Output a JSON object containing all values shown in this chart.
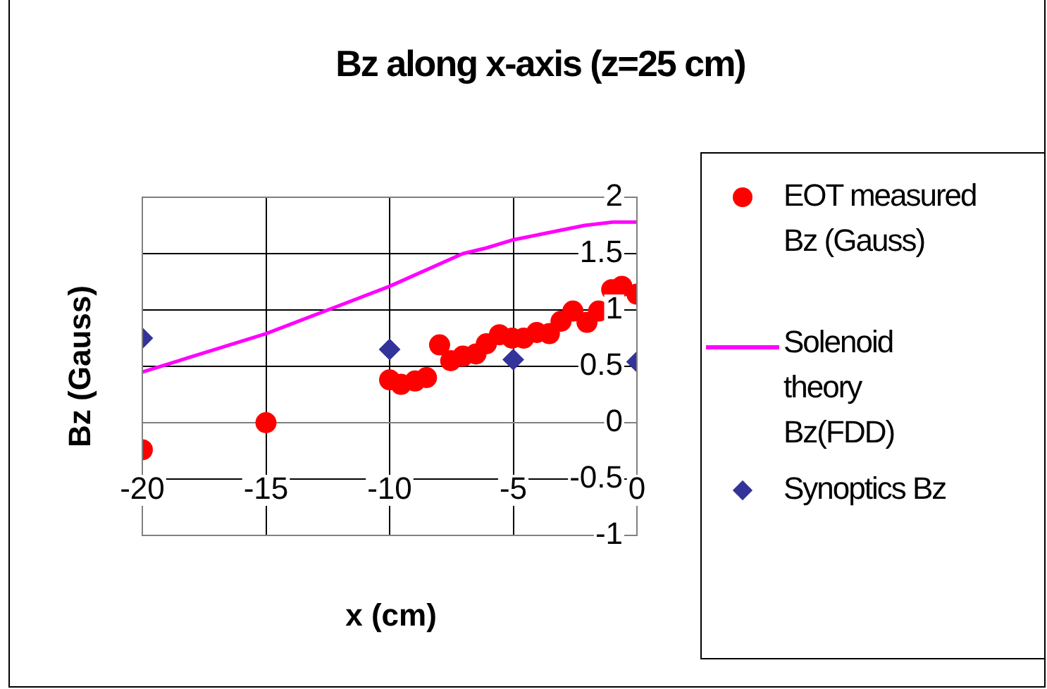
{
  "chart_data": {
    "type": "scatter",
    "title": "Bz along x-axis (z=25 cm)",
    "xlabel": "x (cm)",
    "ylabel": "Bz (Gauss)",
    "xlim": [
      -20,
      0
    ],
    "xticks": [
      -20,
      -15,
      -10,
      -5,
      0
    ],
    "ylim": [
      -1,
      2
    ],
    "yticks": [
      -1,
      -0.5,
      0,
      0.5,
      1,
      1.5,
      2
    ],
    "grid": true,
    "legend": "right",
    "series": [
      {
        "name": "EOT measured Bz (Gauss)",
        "marker": "circle",
        "color": "#ff0000",
        "x": [
          -20,
          -15,
          -10,
          -9.54,
          -8.97,
          -8.51,
          -7.98,
          -7.53,
          -7.04,
          -6.51,
          -6.09,
          -5.56,
          -5.05,
          -4.58,
          -4.05,
          -3.54,
          -3.07,
          -2.59,
          -2.02,
          -1.55,
          -1.02,
          -0.61,
          0
        ],
        "values": [
          -0.24,
          0,
          0.38,
          0.34,
          0.37,
          0.4,
          0.69,
          0.55,
          0.59,
          0.61,
          0.7,
          0.78,
          0.75,
          0.75,
          0.8,
          0.79,
          0.9,
          0.99,
          0.89,
          0.99,
          1.18,
          1.21,
          1.14
        ]
      },
      {
        "name": "Solenoid theory Bz(FDD)",
        "type": "line",
        "marker": "none",
        "color": "#ff00ff",
        "x": [
          -20,
          -15,
          -10,
          -7.04,
          -6.09,
          -5.05,
          -2.12,
          -0.98,
          0
        ],
        "values": [
          0.45,
          0.79,
          1.21,
          1.5,
          1.55,
          1.62,
          1.75,
          1.78,
          1.78
        ]
      },
      {
        "name": "Synoptics Bz",
        "marker": "diamond",
        "color": "#333399",
        "x": [
          -20,
          -10,
          -5,
          0
        ],
        "values": [
          0.75,
          0.65,
          0.56,
          0.54
        ]
      }
    ]
  }
}
